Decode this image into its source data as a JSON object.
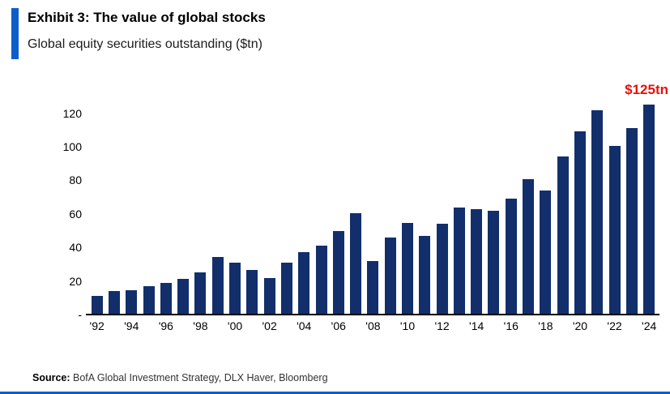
{
  "header": {
    "accent_color": "#0d5eca",
    "title": "Exhibit 3: The value of global stocks",
    "subtitle": "Global equity securities outstanding ($tn)"
  },
  "chart_data": {
    "type": "bar",
    "title": "Exhibit 3: The value of global stocks",
    "subtitle": "Global equity securities outstanding ($tn)",
    "xlabel": "",
    "ylabel": "Global equity securities outstanding ($tn)",
    "categories": [
      1992,
      1993,
      1994,
      1995,
      1996,
      1997,
      1998,
      1999,
      2000,
      2001,
      2002,
      2003,
      2004,
      2005,
      2006,
      2007,
      2008,
      2009,
      2010,
      2011,
      2012,
      2013,
      2014,
      2015,
      2016,
      2017,
      2018,
      2019,
      2020,
      2021,
      2022,
      2023,
      2024
    ],
    "values": [
      11,
      14,
      14.5,
      17,
      19,
      21.5,
      25,
      34.5,
      31,
      26.5,
      22,
      31,
      37,
      41,
      50,
      60.5,
      32,
      46,
      54.5,
      47,
      54,
      64,
      63,
      62,
      69,
      80.5,
      74,
      94,
      109,
      122,
      100.5,
      111,
      125
    ],
    "x_tick_labels": [
      "'92",
      "",
      "'94",
      "",
      "'96",
      "",
      "'98",
      "",
      "'00",
      "",
      "'02",
      "",
      "'04",
      "",
      "'06",
      "",
      "'08",
      "",
      "'10",
      "",
      "'12",
      "",
      "'14",
      "",
      "'16",
      "",
      "'18",
      "",
      "'20",
      "",
      "'22",
      "",
      "'24"
    ],
    "y_ticks": [
      {
        "label": "120",
        "value": 120
      },
      {
        "label": "100",
        "value": 100
      },
      {
        "label": "80",
        "value": 80
      },
      {
        "label": "60",
        "value": 60
      },
      {
        "label": "40",
        "value": 40
      },
      {
        "label": "20",
        "value": 20
      },
      {
        "label": "-",
        "value": 0
      }
    ],
    "ylim": [
      0,
      130
    ],
    "grid": "off",
    "legend": "none",
    "bar_color": "#122f6b",
    "annotation": {
      "text": "$125tn",
      "color": "#e3120b",
      "target_year": 2024
    }
  },
  "footer": {
    "source_label": "Source:",
    "source_text": " BofA Global Investment Strategy, DLX Haver, Bloomberg"
  }
}
